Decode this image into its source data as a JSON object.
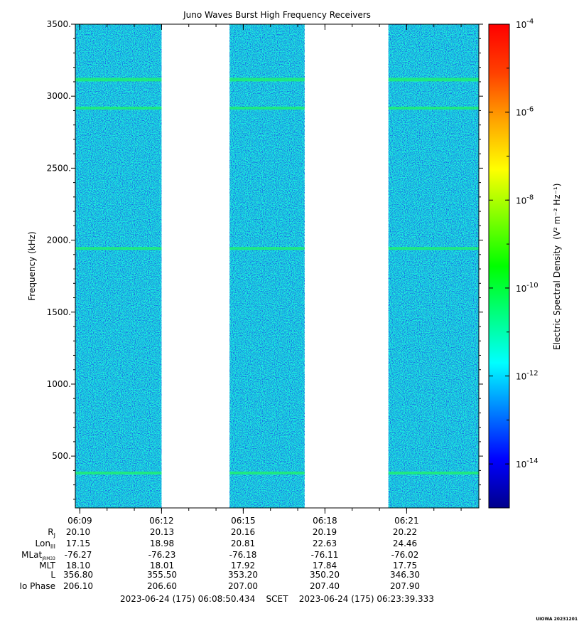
{
  "chart_data": {
    "type": "heatmap",
    "title": "Juno Waves Burst High Frequency Receivers",
    "ylabel": "Frequency (kHz)",
    "ylim": [
      140,
      3500
    ],
    "yticks": [
      "500.",
      "1000.",
      "1500.",
      "2000.",
      "2500.",
      "3000.",
      "3500."
    ],
    "ytick_values": [
      500,
      1000,
      1500,
      2000,
      2500,
      3000,
      3500
    ],
    "x_range": [
      "06:08:50",
      "06:23:39"
    ],
    "xticks": [
      "06:09",
      "06:12",
      "06:15",
      "06:18",
      "06:21"
    ],
    "data_segments": [
      {
        "start": "06:08:50",
        "end": "06:12:00"
      },
      {
        "start": "06:14:30",
        "end": "06:17:15"
      },
      {
        "start": "06:20:20",
        "end": "06:23:39"
      }
    ],
    "emission_lines_khz": [
      380,
      1940,
      2915,
      3115
    ],
    "colorbar": {
      "label": "Electric Spectral Density",
      "label_unit": "(V² m⁻² Hz⁻¹)",
      "scale": "log",
      "range_exponent": [
        -15,
        -4
      ],
      "tick_labels": [
        {
          "base": "10",
          "exp": "-4",
          "value_exp": -4
        },
        {
          "base": "10",
          "exp": "-6",
          "value_exp": -6
        },
        {
          "base": "10",
          "exp": "-8",
          "value_exp": -8
        },
        {
          "base": "10",
          "exp": "-10",
          "value_exp": -10
        },
        {
          "base": "10",
          "exp": "-12",
          "value_exp": -12
        },
        {
          "base": "10",
          "exp": "-14",
          "value_exp": -14
        }
      ],
      "colors": [
        "#00008b",
        "#0000ff",
        "#0080ff",
        "#00ffff",
        "#00ff80",
        "#00ff00",
        "#80ff00",
        "#ffff00",
        "#ffa500",
        "#ff4000",
        "#ff0000"
      ]
    },
    "background_color": "#11e6e6",
    "ephemeris": {
      "rows": [
        {
          "label": "Rj",
          "label_main": "R",
          "label_sub": "J",
          "values": [
            "20.10",
            "20.13",
            "20.16",
            "20.19",
            "20.22"
          ]
        },
        {
          "label": "LonIII",
          "label_main": "Lon",
          "label_sub": "III",
          "values": [
            "17.15",
            "18.98",
            "20.81",
            "22.63",
            "24.46"
          ]
        },
        {
          "label": "MLatJRM33",
          "label_main": "MLat",
          "label_sub": "JRM33",
          "values": [
            "-76.27",
            "-76.23",
            "-76.18",
            "-76.11",
            "-76.02"
          ]
        },
        {
          "label": "MLT",
          "label_main": "MLT",
          "label_sub": "",
          "values": [
            "18.10",
            "18.01",
            "17.92",
            "17.84",
            "17.75"
          ]
        },
        {
          "label": "L",
          "label_main": "L",
          "label_sub": "",
          "values": [
            "356.80",
            "355.50",
            "353.20",
            "350.20",
            "346.30"
          ]
        },
        {
          "label": "Io Phase",
          "label_main": "Io Phase",
          "label_sub": "",
          "values": [
            "206.10",
            "206.60",
            "207.00",
            "207.40",
            "207.90"
          ]
        }
      ]
    },
    "time_range_text": "2023-06-24 (175) 06:08:50.434    SCET    2023-06-24 (175) 06:23:39.333",
    "credit": "UIOWA 20231201"
  }
}
